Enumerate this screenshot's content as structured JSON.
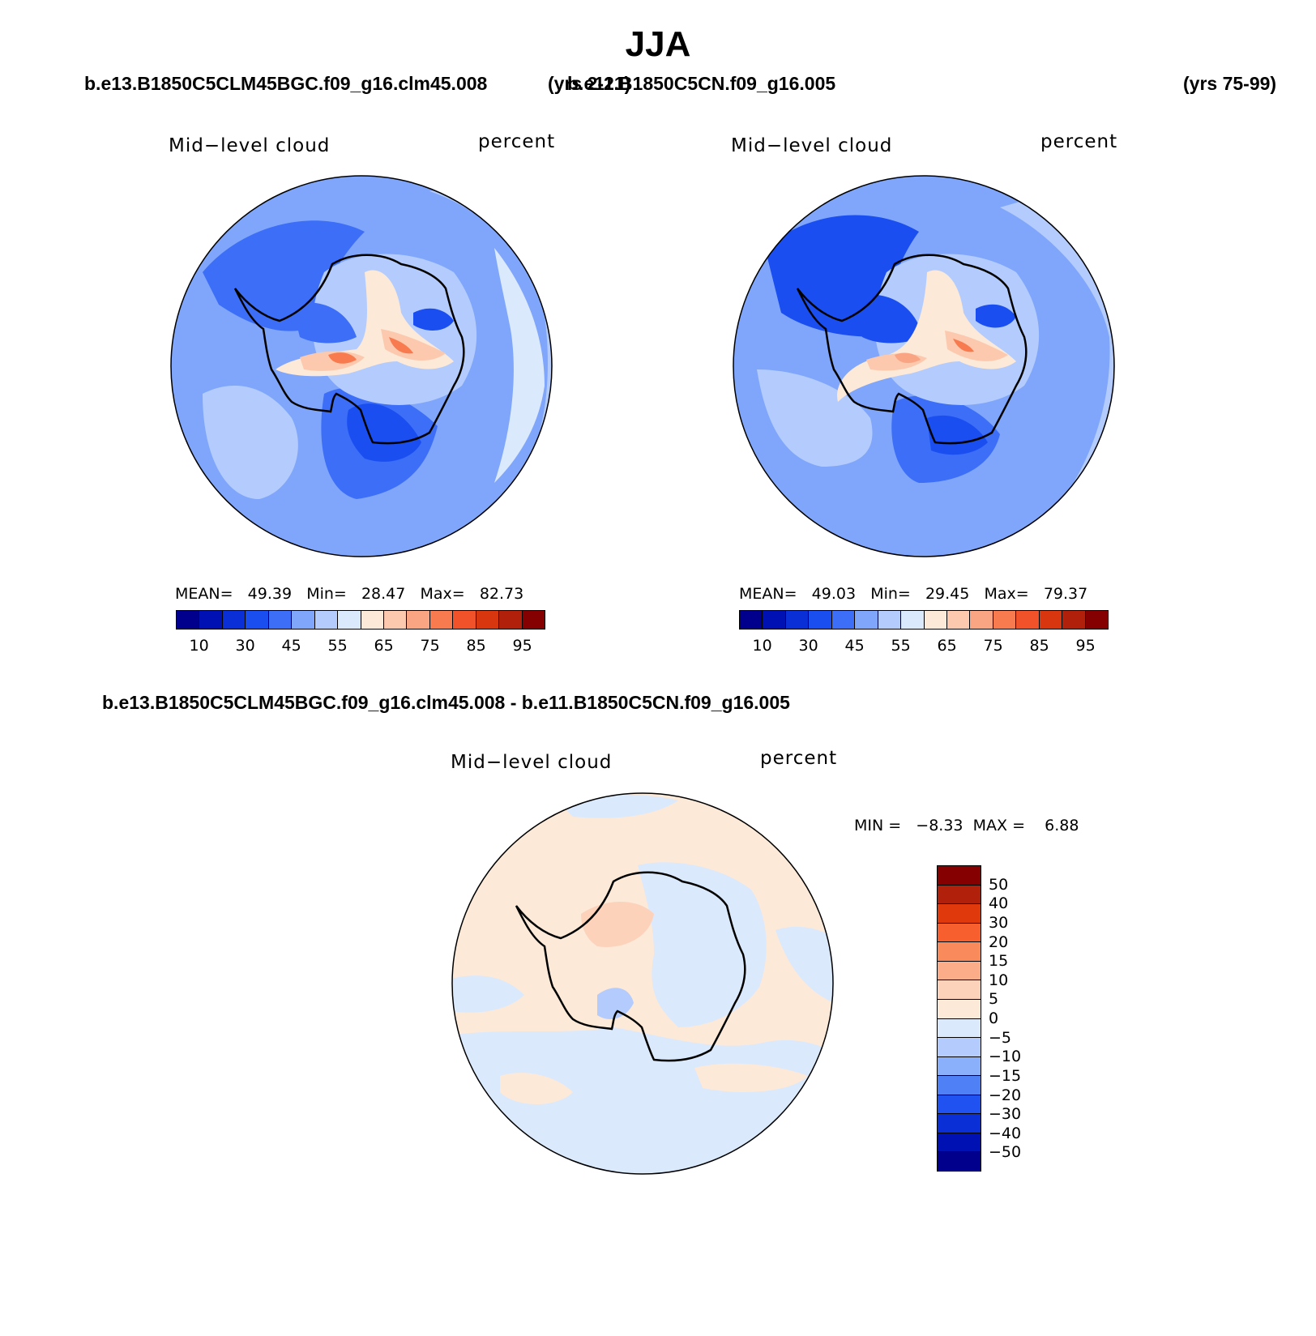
{
  "title": "JJA",
  "case1": {
    "name": "b.e13.B1850C5CLM45BGC.f09_g16.clm45.008",
    "years": "(yrs 2-21)"
  },
  "case2": {
    "name": "b.e11.B1850C5CN.f09_g16.005",
    "years": "(yrs 75-99)"
  },
  "panels": [
    {
      "variable": "Mid−level cloud",
      "units": "percent",
      "mean_label": "MEAN=",
      "mean": "49.39",
      "min_label": "Min=",
      "min": "28.47",
      "max_label": "Max=",
      "max": "82.73"
    },
    {
      "variable": "Mid−level cloud",
      "units": "percent",
      "mean_label": "MEAN=",
      "mean": "49.03",
      "min_label": "Min=",
      "min": "29.45",
      "max_label": "Max=",
      "max": "79.37"
    }
  ],
  "diff": {
    "title": "b.e13.B1850C5CLM45BGC.f09_g16.clm45.008 - b.e11.B1850C5CN.f09_g16.005",
    "variable": "Mid−level cloud",
    "units": "percent",
    "min_label": "MIN =",
    "min": "−8.33",
    "max_label": "MAX =",
    "max": "6.88"
  },
  "abs_colorbar": {
    "colors": [
      "#00008c",
      "#0011b4",
      "#0a2fd6",
      "#1a4ef0",
      "#3c6ef8",
      "#7fa6fb",
      "#b3ccfd",
      "#dbe9fd",
      "#fde9d8",
      "#fcc9ae",
      "#f9a583",
      "#f77b4f",
      "#f2522a",
      "#d8360e",
      "#b0200a",
      "#850000"
    ],
    "labels": [
      "10",
      "30",
      "45",
      "55",
      "65",
      "75",
      "85",
      "95"
    ]
  },
  "diff_colorbar": {
    "colors_top_to_bottom": [
      "#850000",
      "#b0200a",
      "#e03a0c",
      "#f7602e",
      "#f98a5c",
      "#fbad8a",
      "#fcd2bb",
      "#fde9d8",
      "#dbe9fd",
      "#b3ccfd",
      "#8ab0fb",
      "#4f80f6",
      "#1f52f0",
      "#0a2fd6",
      "#0011b4",
      "#00008c"
    ],
    "labels": [
      "50",
      "40",
      "30",
      "20",
      "15",
      "10",
      "5",
      "0",
      "−5",
      "−10",
      "−15",
      "−20",
      "−30",
      "−40",
      "−50"
    ]
  },
  "map_colors": {
    "ocean_deep": "#1a4ef0",
    "ocean_mid": "#3c6ef8",
    "ocean_light": "#7fa6fb",
    "ocean_pale": "#b3ccfd",
    "ocean_faint": "#dbe9fd",
    "warm_1": "#fde9d8",
    "warm_2": "#fcc9ae",
    "warm_3": "#f9a583",
    "warm_4": "#f77b4f",
    "diff_pos": "#fde9d8",
    "diff_neg": "#dbe9fd",
    "diff_pos2": "#fcd2bb",
    "diff_neg2": "#b3ccfd"
  }
}
